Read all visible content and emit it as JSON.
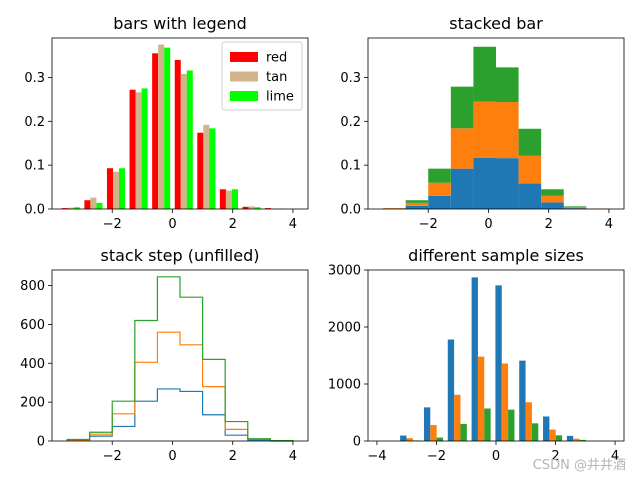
{
  "colors": {
    "red": "#ff0000",
    "tan": "#d2b48c",
    "lime": "#00ff00",
    "c0": "#1f77b4",
    "c1": "#ff7f0e",
    "c2": "#2ca02c"
  },
  "watermark": "CSDN @井井酒",
  "chart_data": [
    {
      "id": "p1",
      "type": "bar",
      "title": "bars with legend",
      "bin_edges": [
        -3.75,
        -3.0,
        -2.25,
        -1.5,
        -0.75,
        0.0,
        0.75,
        1.5,
        2.25,
        3.0,
        3.75,
        4.5
      ],
      "xlim": [
        -4.0,
        4.5
      ],
      "ylim": [
        0,
        0.39
      ],
      "xticks": [
        -2,
        0,
        2,
        4
      ],
      "xticklabels": [
        "−2",
        "0",
        "2",
        "4"
      ],
      "yticks": [
        0.0,
        0.1,
        0.2,
        0.3
      ],
      "yticklabels": [
        "0.0",
        "0.1",
        "0.2",
        "0.3"
      ],
      "legend": {
        "position": "upper right",
        "entries": [
          "red",
          "tan",
          "lime"
        ]
      },
      "series": [
        {
          "name": "red",
          "color_key": "red",
          "values": [
            0.002,
            0.02,
            0.093,
            0.272,
            0.355,
            0.34,
            0.174,
            0.045,
            0.005,
            0.002
          ]
        },
        {
          "name": "tan",
          "color_key": "tan",
          "values": [
            0.003,
            0.026,
            0.085,
            0.266,
            0.375,
            0.308,
            0.192,
            0.042,
            0.006,
            0.001
          ]
        },
        {
          "name": "lime",
          "color_key": "lime",
          "values": [
            0.004,
            0.014,
            0.093,
            0.275,
            0.368,
            0.316,
            0.184,
            0.045,
            0.004,
            0.001
          ]
        }
      ]
    },
    {
      "id": "p2",
      "type": "bar",
      "stacked": true,
      "title": "stacked bar",
      "bin_edges": [
        -3.5,
        -2.75,
        -2.0,
        -1.25,
        -0.5,
        0.25,
        1.0,
        1.75,
        2.5,
        3.25,
        4.0
      ],
      "xlim": [
        -4.0,
        4.5
      ],
      "ylim": [
        0,
        0.39
      ],
      "xticks": [
        -2,
        0,
        2,
        4
      ],
      "xticklabels": [
        "−2",
        "0",
        "2",
        "4"
      ],
      "yticks": [
        0.0,
        0.1,
        0.2,
        0.3
      ],
      "yticklabels": [
        "0.0",
        "0.1",
        "0.2",
        "0.3"
      ],
      "series": [
        {
          "color_key": "c0",
          "values": [
            0.001,
            0.007,
            0.03,
            0.092,
            0.117,
            0.116,
            0.058,
            0.015,
            0.002,
            0.0
          ]
        },
        {
          "color_key": "c1",
          "values": [
            0.001,
            0.007,
            0.03,
            0.092,
            0.128,
            0.128,
            0.064,
            0.015,
            0.002,
            0.001
          ]
        },
        {
          "color_key": "c2",
          "values": [
            0.0,
            0.006,
            0.032,
            0.095,
            0.125,
            0.079,
            0.061,
            0.015,
            0.002,
            0.0
          ]
        }
      ]
    },
    {
      "id": "p3",
      "type": "step",
      "title": "stack step (unfilled)",
      "bin_edges": [
        -3.5,
        -2.75,
        -2.0,
        -1.25,
        -0.5,
        0.25,
        1.0,
        1.75,
        2.5,
        3.25,
        4.0
      ],
      "xlim": [
        -4.0,
        4.5
      ],
      "ylim": [
        0,
        880
      ],
      "xticks": [
        -2,
        0,
        2,
        4
      ],
      "xticklabels": [
        "−2",
        "0",
        "2",
        "4"
      ],
      "yticks": [
        0,
        200,
        400,
        600,
        800
      ],
      "yticklabels": [
        "0",
        "200",
        "400",
        "600",
        "800"
      ],
      "series": [
        {
          "color_key": "c0",
          "cumulative": [
            3,
            25,
            75,
            205,
            268,
            255,
            135,
            30,
            5,
            0
          ]
        },
        {
          "color_key": "c1",
          "cumulative": [
            5,
            35,
            140,
            405,
            560,
            495,
            280,
            60,
            10,
            1
          ]
        },
        {
          "color_key": "c2",
          "cumulative": [
            8,
            45,
            205,
            620,
            845,
            740,
            420,
            100,
            12,
            2
          ]
        }
      ]
    },
    {
      "id": "p4",
      "type": "bar",
      "title": "different sample sizes",
      "bin_edges": [
        -3.3,
        -2.5,
        -1.7,
        -0.9,
        -0.1,
        0.7,
        1.5,
        2.3,
        3.1
      ],
      "xlim": [
        -4.3,
        4.3
      ],
      "ylim": [
        0,
        3000
      ],
      "xticks": [
        -4,
        -2,
        0,
        2,
        4
      ],
      "xticklabels": [
        "−4",
        "−2",
        "0",
        "2",
        "4"
      ],
      "yticks": [
        0,
        1000,
        2000,
        3000
      ],
      "yticklabels": [
        "0",
        "1000",
        "2000",
        "3000"
      ],
      "series": [
        {
          "color_key": "c0",
          "values": [
            95,
            590,
            1780,
            2870,
            2730,
            1410,
            430,
            90
          ]
        },
        {
          "color_key": "c1",
          "values": [
            50,
            280,
            810,
            1480,
            1360,
            680,
            200,
            40
          ]
        },
        {
          "color_key": "c2",
          "values": [
            10,
            60,
            300,
            570,
            550,
            310,
            100,
            20
          ]
        }
      ]
    }
  ]
}
